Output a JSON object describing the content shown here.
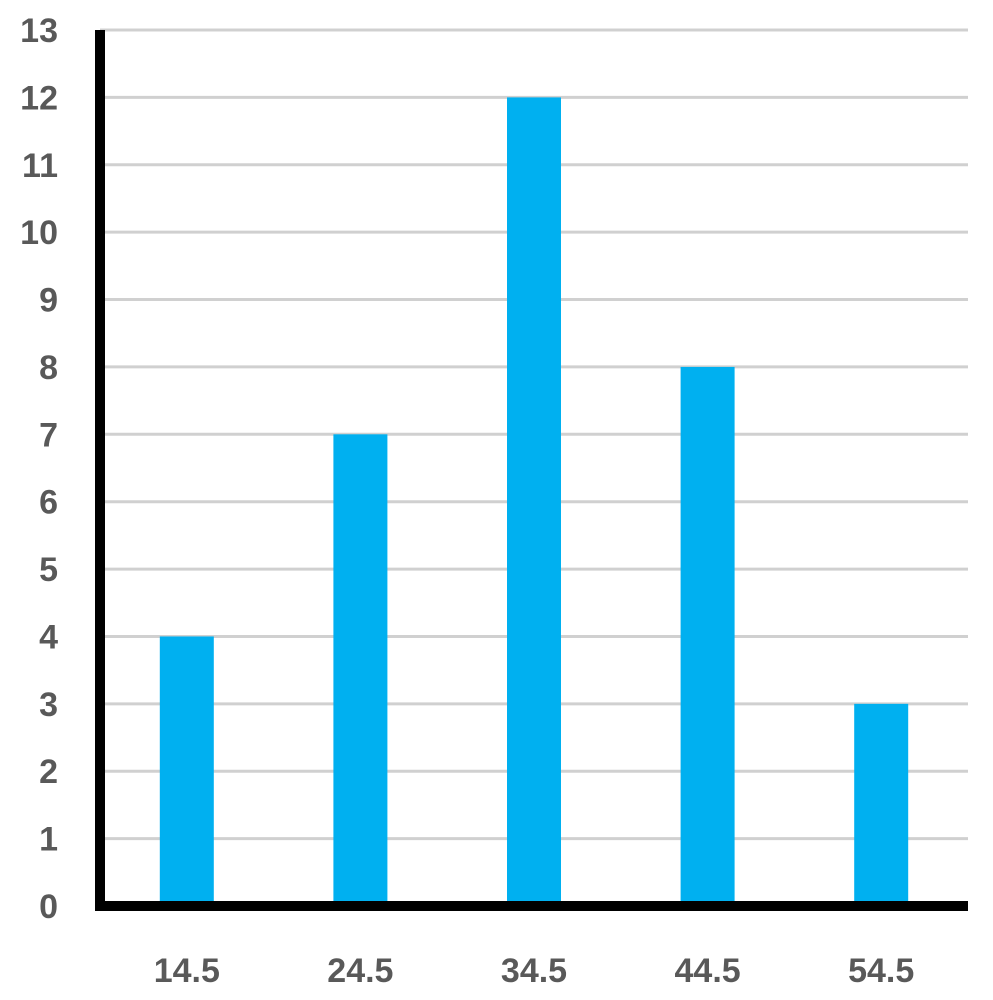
{
  "chart_data": {
    "type": "bar",
    "categories": [
      "14.5",
      "24.5",
      "34.5",
      "44.5",
      "54.5"
    ],
    "values": [
      4,
      7,
      12,
      8,
      3
    ],
    "ylim": [
      0,
      13
    ],
    "yticks": [
      "0",
      "1",
      "2",
      "3",
      "4",
      "5",
      "6",
      "7",
      "8",
      "9",
      "10",
      "11",
      "12",
      "13"
    ],
    "grid": true,
    "legend": "none",
    "colors": {
      "bar": "#00B0F0",
      "grid": "#D0D0D0",
      "axis": "#000000",
      "tick_text": "#595959"
    }
  }
}
